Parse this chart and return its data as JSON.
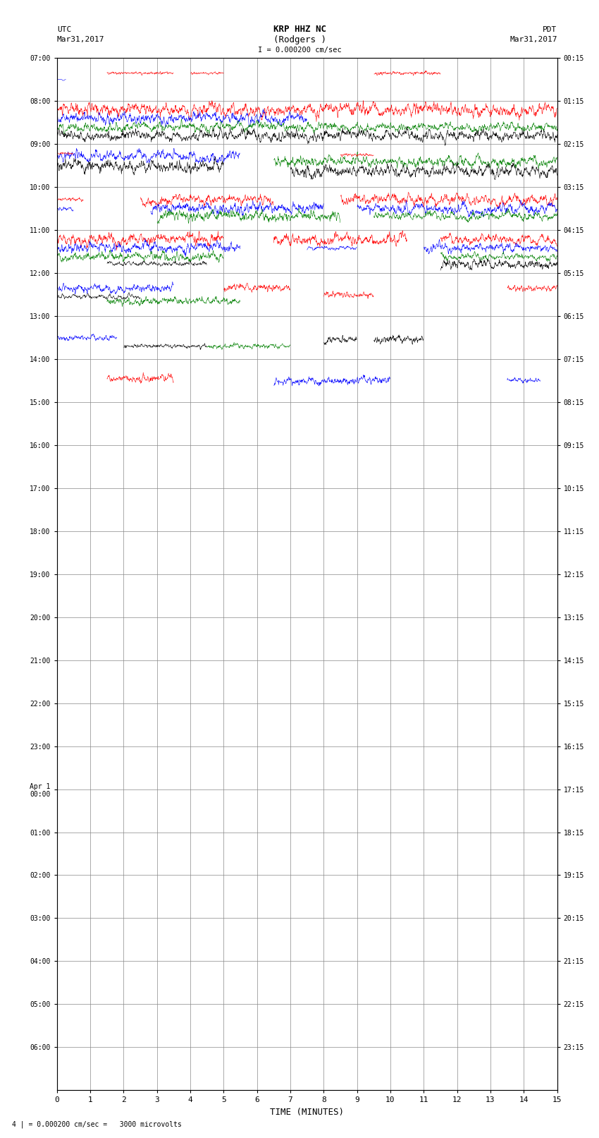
{
  "title_line1": "KRP HHZ NC",
  "title_line2": "(Rodgers )",
  "scale_label": "I = 0.000200 cm/sec",
  "bottom_label": "4 | = 0.000200 cm/sec =   3000 microvolts",
  "xlabel": "TIME (MINUTES)",
  "left_header_line1": "UTC",
  "left_header_line2": "Mar31,2017",
  "right_header_line1": "PDT",
  "right_header_line2": "Mar31,2017",
  "left_yticks": [
    "07:00",
    "08:00",
    "09:00",
    "10:00",
    "11:00",
    "12:00",
    "13:00",
    "14:00",
    "15:00",
    "16:00",
    "17:00",
    "18:00",
    "19:00",
    "20:00",
    "21:00",
    "22:00",
    "23:00",
    "Apr 1\n00:00",
    "01:00",
    "02:00",
    "03:00",
    "04:00",
    "05:00",
    "06:00"
  ],
  "right_yticks": [
    "00:15",
    "01:15",
    "02:15",
    "03:15",
    "04:15",
    "05:15",
    "06:15",
    "07:15",
    "08:15",
    "09:15",
    "10:15",
    "11:15",
    "12:15",
    "13:15",
    "14:15",
    "15:15",
    "16:15",
    "17:15",
    "18:15",
    "19:15",
    "20:15",
    "21:15",
    "22:15",
    "23:15"
  ],
  "num_rows": 24,
  "xmin": 0,
  "xmax": 15,
  "xticks": [
    0,
    1,
    2,
    3,
    4,
    5,
    6,
    7,
    8,
    9,
    10,
    11,
    12,
    13,
    14,
    15
  ],
  "bg_color": "#ffffff",
  "grid_color": "#888888"
}
